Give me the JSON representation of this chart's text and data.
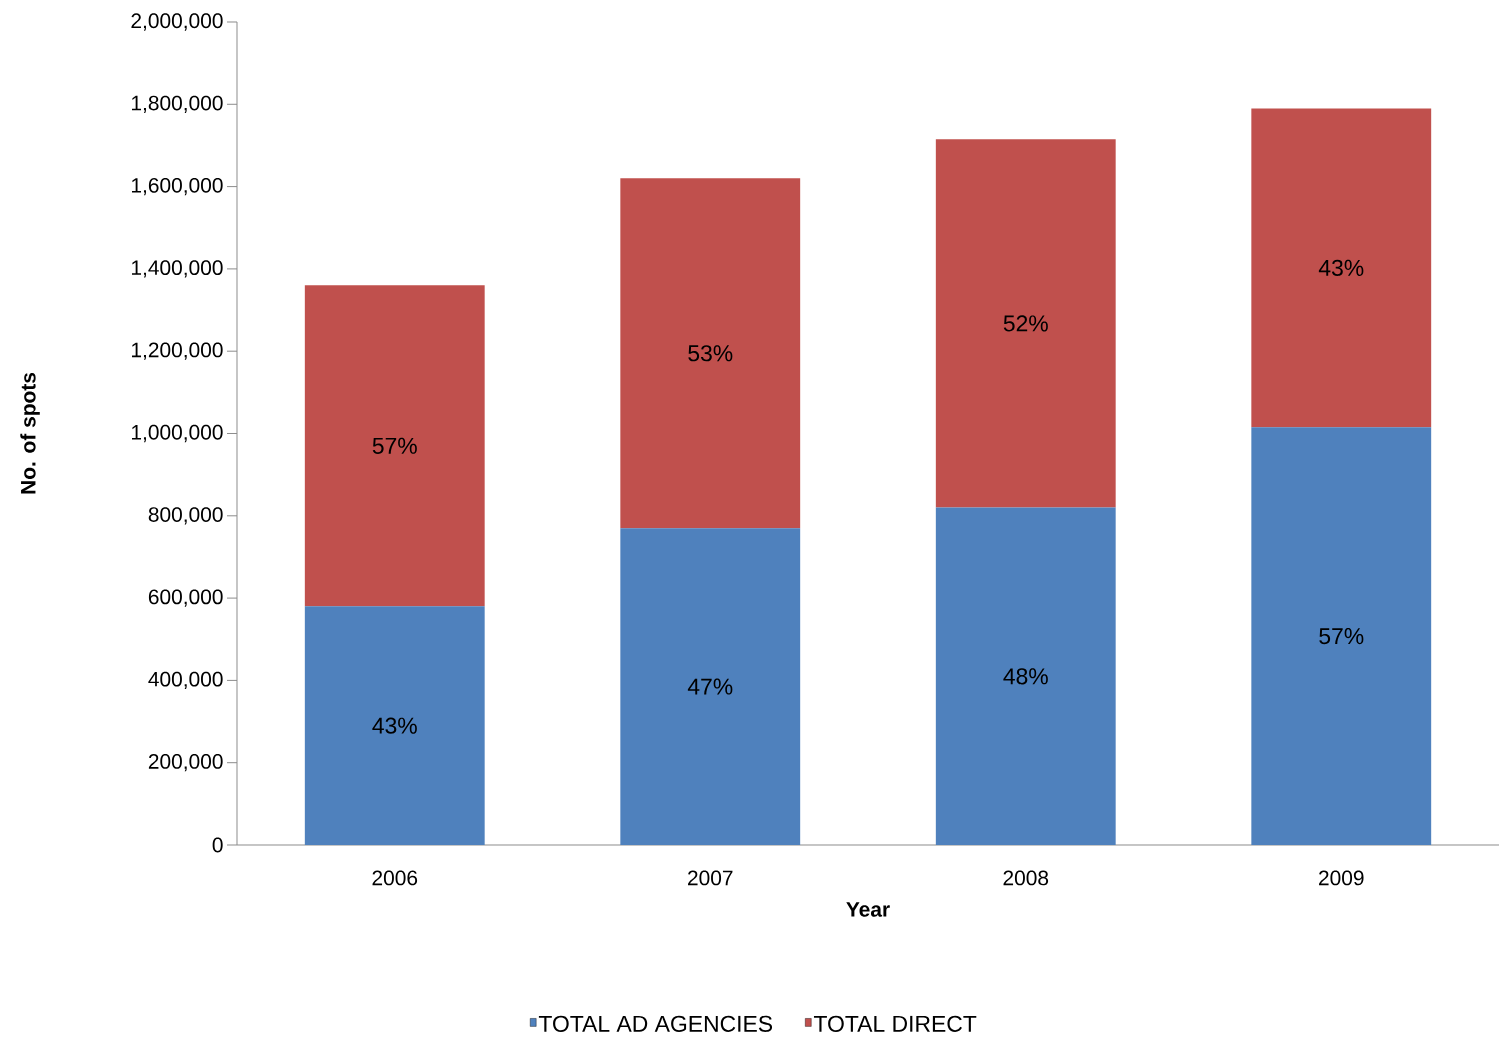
{
  "chart_data": {
    "type": "bar",
    "stacked": true,
    "xlabel": "Year",
    "ylabel": "No. of spots",
    "categories": [
      "2006",
      "2007",
      "2008",
      "2009"
    ],
    "series": [
      {
        "name": "TOTAL AD AGENCIES",
        "color": "#4f81bd",
        "values": [
          580000,
          770000,
          820000,
          1015000
        ]
      },
      {
        "name": "TOTAL DIRECT",
        "color": "#c0504d",
        "values": [
          780000,
          850000,
          895000,
          775000
        ]
      }
    ],
    "annotations": [
      "43%",
      "57%",
      "47%",
      "53%",
      "48%",
      "52%",
      "57%",
      "43%"
    ],
    "ylim": [
      0,
      2000000
    ],
    "yticks": [
      {
        "value": 0,
        "label": "0"
      },
      {
        "value": 200000,
        "label": "200,000"
      },
      {
        "value": 400000,
        "label": "400,000"
      },
      {
        "value": 600000,
        "label": "600,000"
      },
      {
        "value": 800000,
        "label": "800,000"
      },
      {
        "value": 1000000,
        "label": "1,000,000"
      },
      {
        "value": 1200000,
        "label": "1,200,000"
      },
      {
        "value": 1400000,
        "label": "1,400,000"
      },
      {
        "value": 1600000,
        "label": "1,600,000"
      },
      {
        "value": 1800000,
        "label": "1,800,000"
      },
      {
        "value": 2000000,
        "label": "2,000,000"
      }
    ],
    "grid": false,
    "legend": "bottom"
  }
}
